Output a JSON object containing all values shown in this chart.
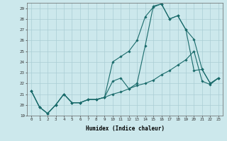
{
  "xlabel": "Humidex (Indice chaleur)",
  "ylabel": "",
  "bg_color": "#cce8ec",
  "grid_color": "#aacdd4",
  "line_color": "#1a6b6b",
  "xlim": [
    -0.5,
    23.5
  ],
  "ylim": [
    19,
    29.5
  ],
  "xticks": [
    0,
    1,
    2,
    3,
    4,
    5,
    6,
    7,
    8,
    9,
    10,
    11,
    12,
    13,
    14,
    15,
    16,
    17,
    18,
    19,
    20,
    21,
    22,
    23
  ],
  "yticks": [
    19,
    20,
    21,
    22,
    23,
    24,
    25,
    26,
    27,
    28,
    29
  ],
  "series": [
    [
      21.3,
      19.8,
      19.2,
      20.0,
      21.0,
      20.2,
      20.2,
      20.5,
      20.5,
      20.7,
      22.2,
      22.5,
      21.5,
      22.0,
      25.5,
      29.2,
      29.4,
      28.0,
      28.3,
      27.0,
      26.1,
      23.3,
      22.0,
      22.5
    ],
    [
      21.3,
      19.8,
      19.2,
      20.0,
      21.0,
      20.2,
      20.2,
      20.5,
      20.5,
      20.7,
      21.0,
      21.2,
      21.5,
      21.8,
      22.0,
      22.3,
      22.8,
      23.2,
      23.7,
      24.2,
      25.0,
      22.2,
      21.9,
      22.5
    ],
    [
      21.3,
      19.8,
      19.2,
      20.0,
      21.0,
      20.2,
      20.2,
      20.5,
      20.5,
      20.7,
      24.0,
      24.5,
      25.0,
      26.0,
      28.2,
      29.1,
      29.4,
      28.0,
      28.3,
      27.0,
      23.2,
      23.3,
      22.0,
      22.5
    ]
  ]
}
